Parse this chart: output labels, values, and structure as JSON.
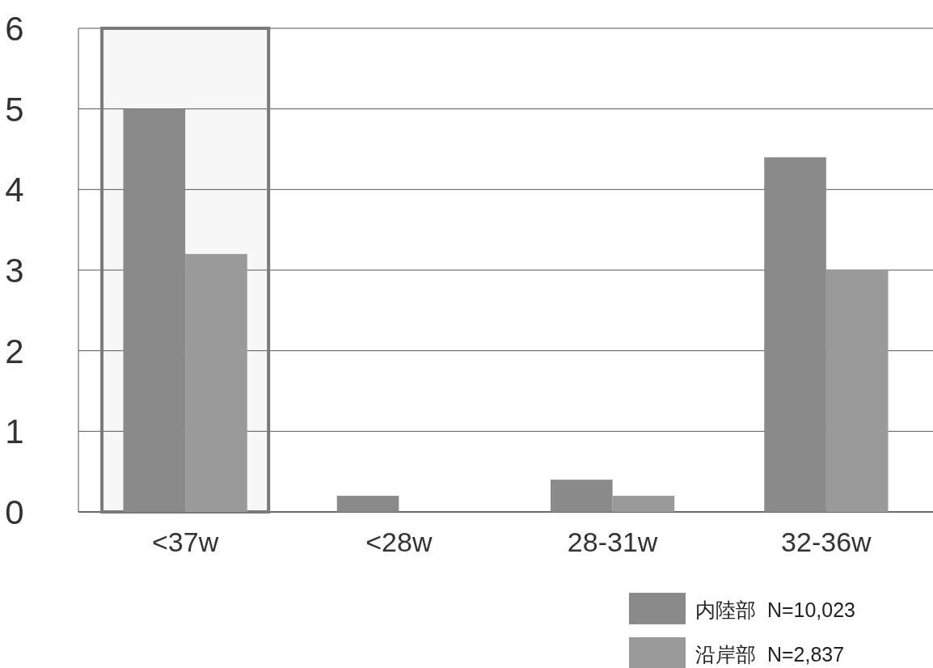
{
  "chart_data": {
    "type": "bar",
    "categories": [
      "<37w",
      "<28w",
      "28-31w",
      "32-36w"
    ],
    "series": [
      {
        "name": "内陸部  N=10,023",
        "color": "#8a8a8a",
        "values": [
          5.0,
          0.2,
          0.4,
          4.4
        ]
      },
      {
        "name": "沿岸部  N=2,837",
        "color": "#9a9a9a",
        "values": [
          3.2,
          0,
          0.2,
          3.0
        ]
      }
    ],
    "ylim": [
      0,
      6
    ],
    "yticks": [
      0,
      1,
      2,
      3,
      4,
      5,
      6
    ],
    "grid": "y",
    "legend": "bottom right",
    "bands": [
      {
        "axis": "x",
        "from": "<37w",
        "to": "<37w",
        "color": "#7a7a7a"
      }
    ]
  }
}
